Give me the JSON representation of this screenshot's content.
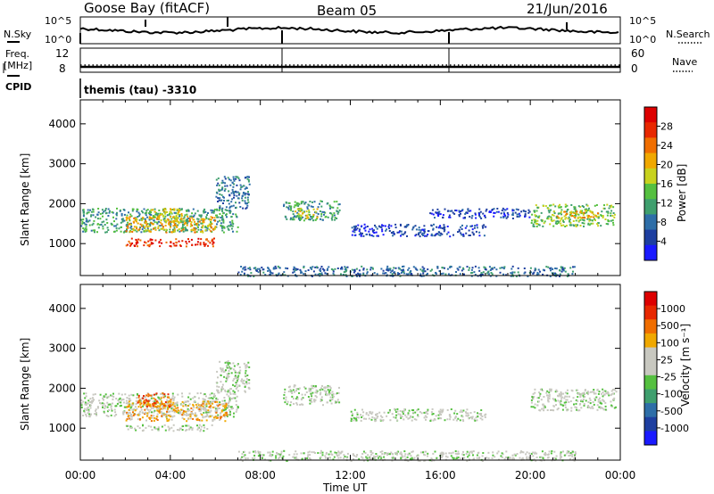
{
  "header": {
    "station": "Goose Bay (fitACF)",
    "beam": "Beam 05",
    "date": "21/Jun/2016"
  },
  "summary": {
    "nsky_label": "N.Sky",
    "nsearch_label": "N.Search",
    "nave_label": "Nave",
    "freq_label_1": "Freq.",
    "freq_label_2": "[MHz]",
    "cpid_label": "CPID",
    "cpid_value": "themis (tau) -3310",
    "noise_ticks": [
      "10^5",
      "10^0"
    ],
    "freq_ticks": [
      "12",
      "8"
    ],
    "nave_ticks": [
      "60",
      "0"
    ]
  },
  "chart_data": [
    {
      "type": "heatmap",
      "name": "power-panel",
      "ylabel": "Slant Range [km]",
      "y_ticks": [
        1000,
        2000,
        3000,
        4000
      ],
      "ylim": [
        200,
        4600
      ],
      "x_ticks": [
        "00:00",
        "04:00",
        "08:00",
        "12:00",
        "16:00",
        "20:00",
        "00:00"
      ],
      "xlim_hours": [
        0,
        24
      ],
      "colorbar": {
        "label": "Power [dB]",
        "ticks": [
          "4",
          "8",
          "12",
          "16",
          "20",
          "24",
          "28"
        ],
        "colors": [
          "#1a1aff",
          "#1e3fa0",
          "#2e6ea8",
          "#3f9f6e",
          "#55c040",
          "#c8d21e",
          "#f0a800",
          "#f06e00",
          "#e82800",
          "#dd0000"
        ]
      },
      "regions": [
        {
          "t0": 0.0,
          "t1": 7.0,
          "r0": 1300,
          "r1": 1900,
          "level": 3
        },
        {
          "t0": 2.0,
          "t1": 6.0,
          "r0": 1300,
          "r1": 1700,
          "level": 6
        },
        {
          "t0": 2.0,
          "t1": 6.0,
          "r0": 950,
          "r1": 1150,
          "level": 8
        },
        {
          "t0": 3.0,
          "t1": 4.5,
          "r0": 1550,
          "r1": 1900,
          "level": 5
        },
        {
          "t0": 6.0,
          "t1": 7.5,
          "r0": 1900,
          "r1": 2700,
          "level": 2
        },
        {
          "t0": 9.0,
          "t1": 11.5,
          "r0": 1600,
          "r1": 2100,
          "level": 3
        },
        {
          "t0": 9.5,
          "t1": 10.5,
          "r0": 1650,
          "r1": 1900,
          "level": 5
        },
        {
          "t0": 12.0,
          "t1": 18.0,
          "r0": 1200,
          "r1": 1500,
          "level": 1
        },
        {
          "t0": 15.5,
          "t1": 20.0,
          "r0": 1650,
          "r1": 1900,
          "level": 1
        },
        {
          "t0": 20.0,
          "t1": 23.8,
          "r0": 1450,
          "r1": 2000,
          "level": 4
        },
        {
          "t0": 21.0,
          "t1": 23.0,
          "r0": 1650,
          "r1": 1850,
          "level": 6
        },
        {
          "t0": 7.0,
          "t1": 22.0,
          "r0": 200,
          "r1": 450,
          "level": 2
        }
      ]
    },
    {
      "type": "heatmap",
      "name": "velocity-panel",
      "ylabel": "Slant Range [km]",
      "y_ticks": [
        1000,
        2000,
        3000,
        4000
      ],
      "ylim": [
        200,
        4600
      ],
      "x_ticks": [
        "00:00",
        "04:00",
        "08:00",
        "12:00",
        "16:00",
        "20:00",
        "00:00"
      ],
      "xlim_hours": [
        0,
        24
      ],
      "xlabel": "Time UT",
      "colorbar": {
        "label": "Velocity [m s⁻¹]",
        "ticks": [
          "1000",
          "500",
          "100",
          "25",
          "-25",
          "-100",
          "-500",
          "-1000"
        ],
        "colors": [
          "#1a1aff",
          "#1e3fa0",
          "#2e6ea8",
          "#3f9f6e",
          "#55c040",
          "#c8c8c0",
          "#c8c8c0",
          "#f0a800",
          "#f06e00",
          "#e82800",
          "#dd0000"
        ]
      },
      "regions": [
        {
          "t0": 0.0,
          "t1": 7.0,
          "r0": 1300,
          "r1": 1900,
          "level": 5
        },
        {
          "t0": 2.0,
          "t1": 6.5,
          "r0": 1200,
          "r1": 1700,
          "level": 7
        },
        {
          "t0": 2.5,
          "t1": 4.0,
          "r0": 1550,
          "r1": 1900,
          "level": 8
        },
        {
          "t0": 2.0,
          "t1": 6.0,
          "r0": 950,
          "r1": 1100,
          "level": 5
        },
        {
          "t0": 6.0,
          "t1": 7.5,
          "r0": 1900,
          "r1": 2700,
          "level": 5
        },
        {
          "t0": 9.0,
          "t1": 11.5,
          "r0": 1600,
          "r1": 2100,
          "level": 5
        },
        {
          "t0": 12.0,
          "t1": 18.0,
          "r0": 1200,
          "r1": 1500,
          "level": 5
        },
        {
          "t0": 20.0,
          "t1": 23.8,
          "r0": 1450,
          "r1": 2000,
          "level": 5
        },
        {
          "t0": 7.0,
          "t1": 22.0,
          "r0": 200,
          "r1": 450,
          "level": 5
        }
      ]
    }
  ]
}
